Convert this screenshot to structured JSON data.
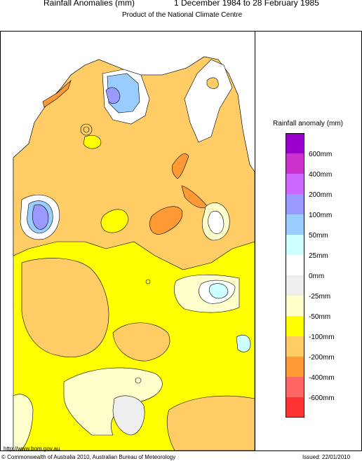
{
  "header": {
    "title": "Rainfall Anomalies (mm)",
    "period": "1 December 1984 to 28 February 1985",
    "subtitle": "Product of the National Climate Centre"
  },
  "legend": {
    "title": "Rainfall anomaly (mm)",
    "items": [
      {
        "label": "600mm",
        "color": "#9900cc"
      },
      {
        "label": "400mm",
        "color": "#cc33cc"
      },
      {
        "label": "200mm",
        "color": "#cc66ff"
      },
      {
        "label": "100mm",
        "color": "#9999ff"
      },
      {
        "label": "50mm",
        "color": "#99ccff"
      },
      {
        "label": "25mm",
        "color": "#ccffff"
      },
      {
        "label": "0mm",
        "color": "#ffffff"
      },
      {
        "label": "-25mm",
        "color": "#eeeeee"
      },
      {
        "label": "-50mm",
        "color": "#ffffcc"
      },
      {
        "label": "-100mm",
        "color": "#ffff00"
      },
      {
        "label": "-200mm",
        "color": "#ffcc66"
      },
      {
        "label": "-400mm",
        "color": "#ff9933"
      },
      {
        "label": "-600mm",
        "color": "#ff6666"
      },
      {
        "label": "",
        "color": "#ff3333"
      }
    ]
  },
  "footer": {
    "url": "http://www.bom.gov.au",
    "copyright": "© Commonwealth of Australia 2010, Australian Bureau of Meteorology",
    "issued": "Issued: 22/01/2010"
  }
}
